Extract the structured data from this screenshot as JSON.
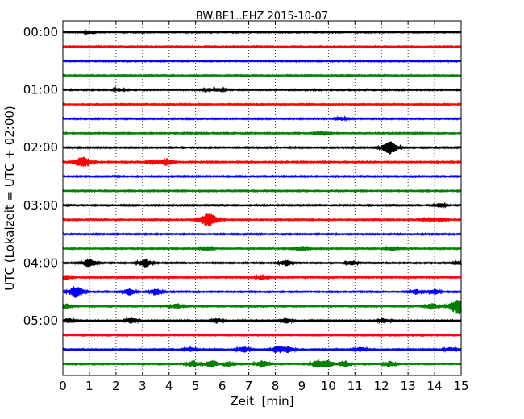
{
  "chart_data": {
    "type": "line",
    "title": "BW.BE1..EHZ 2015-10-07",
    "xlabel": "Zeit  [min]",
    "ylabel": "UTC (Lokalzeit = UTC + 02:00)",
    "xlim": [
      0,
      15
    ],
    "x_ticks": [
      "0",
      "1",
      "2",
      "3",
      "4",
      "5",
      "6",
      "7",
      "8",
      "9",
      "10",
      "11",
      "12",
      "13",
      "14",
      "15"
    ],
    "y_ticks": [
      "00:00",
      "01:00",
      "02:00",
      "03:00",
      "04:00",
      "05:00"
    ],
    "grid": "vertical dotted",
    "row_interval_minutes": 15,
    "colors_cycle": [
      "#000000",
      "#ff0000",
      "#0000ff",
      "#008000"
    ],
    "rows": [
      {
        "time": "00:00",
        "color": "#000000",
        "events": [
          {
            "t": 1.0,
            "amp": 0.2
          }
        ]
      },
      {
        "time": "00:15",
        "color": "#ff0000",
        "events": []
      },
      {
        "time": "00:30",
        "color": "#0000ff",
        "events": []
      },
      {
        "time": "00:45",
        "color": "#008000",
        "events": []
      },
      {
        "time": "01:00",
        "color": "#000000",
        "events": [
          {
            "t": 2.1,
            "amp": 0.2
          },
          {
            "t": 5.5,
            "amp": 0.2
          },
          {
            "t": 5.9,
            "amp": 0.2
          }
        ]
      },
      {
        "time": "01:15",
        "color": "#ff0000",
        "events": []
      },
      {
        "time": "01:30",
        "color": "#0000ff",
        "events": [
          {
            "t": 10.5,
            "amp": 0.2
          }
        ]
      },
      {
        "time": "01:45",
        "color": "#008000",
        "events": [
          {
            "t": 9.7,
            "amp": 0.25
          }
        ]
      },
      {
        "time": "02:00",
        "color": "#000000",
        "events": [
          {
            "t": 12.3,
            "amp": 0.8
          }
        ]
      },
      {
        "time": "02:15",
        "color": "#ff0000",
        "events": [
          {
            "t": 0.6,
            "amp": 0.35
          },
          {
            "t": 0.85,
            "amp": 0.55
          },
          {
            "t": 3.9,
            "amp": 0.45
          },
          {
            "t": 3.3,
            "amp": 0.15
          }
        ]
      },
      {
        "time": "02:30",
        "color": "#0000ff",
        "events": []
      },
      {
        "time": "02:45",
        "color": "#008000",
        "events": []
      },
      {
        "time": "03:00",
        "color": "#000000",
        "events": [
          {
            "t": 14.2,
            "amp": 0.25
          }
        ]
      },
      {
        "time": "03:15",
        "color": "#ff0000",
        "events": [
          {
            "t": 5.5,
            "amp": 0.9
          },
          {
            "t": 14.2,
            "amp": 0.25
          },
          {
            "t": 13.7,
            "amp": 0.15
          }
        ]
      },
      {
        "time": "03:30",
        "color": "#0000ff",
        "events": []
      },
      {
        "time": "03:45",
        "color": "#008000",
        "events": [
          {
            "t": 5.4,
            "amp": 0.3
          },
          {
            "t": 9.0,
            "amp": 0.3
          },
          {
            "t": 12.4,
            "amp": 0.3
          }
        ]
      },
      {
        "time": "04:00",
        "color": "#000000",
        "events": [
          {
            "t": 1.0,
            "amp": 0.5
          },
          {
            "t": 3.1,
            "amp": 0.5
          },
          {
            "t": 8.4,
            "amp": 0.4
          },
          {
            "t": 10.9,
            "amp": 0.3
          },
          {
            "t": 15.0,
            "amp": 0.3
          }
        ]
      },
      {
        "time": "04:15",
        "color": "#ff0000",
        "events": [
          {
            "t": 0.1,
            "amp": 0.35
          },
          {
            "t": 7.5,
            "amp": 0.35
          }
        ]
      },
      {
        "time": "04:30",
        "color": "#0000ff",
        "events": [
          {
            "t": 0.5,
            "amp": 0.7
          },
          {
            "t": 2.5,
            "amp": 0.4
          },
          {
            "t": 3.5,
            "amp": 0.4
          },
          {
            "t": 13.3,
            "amp": 0.3
          },
          {
            "t": 14.0,
            "amp": 0.3
          }
        ]
      },
      {
        "time": "04:45",
        "color": "#008000",
        "events": [
          {
            "t": 0.1,
            "amp": 0.3
          },
          {
            "t": 4.3,
            "amp": 0.35
          },
          {
            "t": 13.9,
            "amp": 0.4
          },
          {
            "t": 14.9,
            "amp": 1.0
          }
        ]
      },
      {
        "time": "05:00",
        "color": "#000000",
        "events": [
          {
            "t": 0.2,
            "amp": 0.3
          },
          {
            "t": 2.6,
            "amp": 0.35
          },
          {
            "t": 5.8,
            "amp": 0.3
          },
          {
            "t": 8.4,
            "amp": 0.3
          },
          {
            "t": 12.1,
            "amp": 0.3
          }
        ]
      },
      {
        "time": "05:15",
        "color": "#ff0000",
        "events": []
      },
      {
        "time": "05:30",
        "color": "#0000ff",
        "events": [
          {
            "t": 4.8,
            "amp": 0.3
          },
          {
            "t": 6.8,
            "amp": 0.35
          },
          {
            "t": 8.1,
            "amp": 0.45
          },
          {
            "t": 8.5,
            "amp": 0.35
          },
          {
            "t": 11.2,
            "amp": 0.3
          },
          {
            "t": 14.6,
            "amp": 0.3
          }
        ]
      },
      {
        "time": "05:45",
        "color": "#008000",
        "events": [
          {
            "t": 4.9,
            "amp": 0.4
          },
          {
            "t": 5.6,
            "amp": 0.5
          },
          {
            "t": 6.2,
            "amp": 0.35
          },
          {
            "t": 7.5,
            "amp": 0.45
          },
          {
            "t": 9.6,
            "amp": 0.5
          },
          {
            "t": 10.0,
            "amp": 0.45
          },
          {
            "t": 10.6,
            "amp": 0.4
          },
          {
            "t": 12.3,
            "amp": 0.35
          }
        ]
      }
    ]
  }
}
